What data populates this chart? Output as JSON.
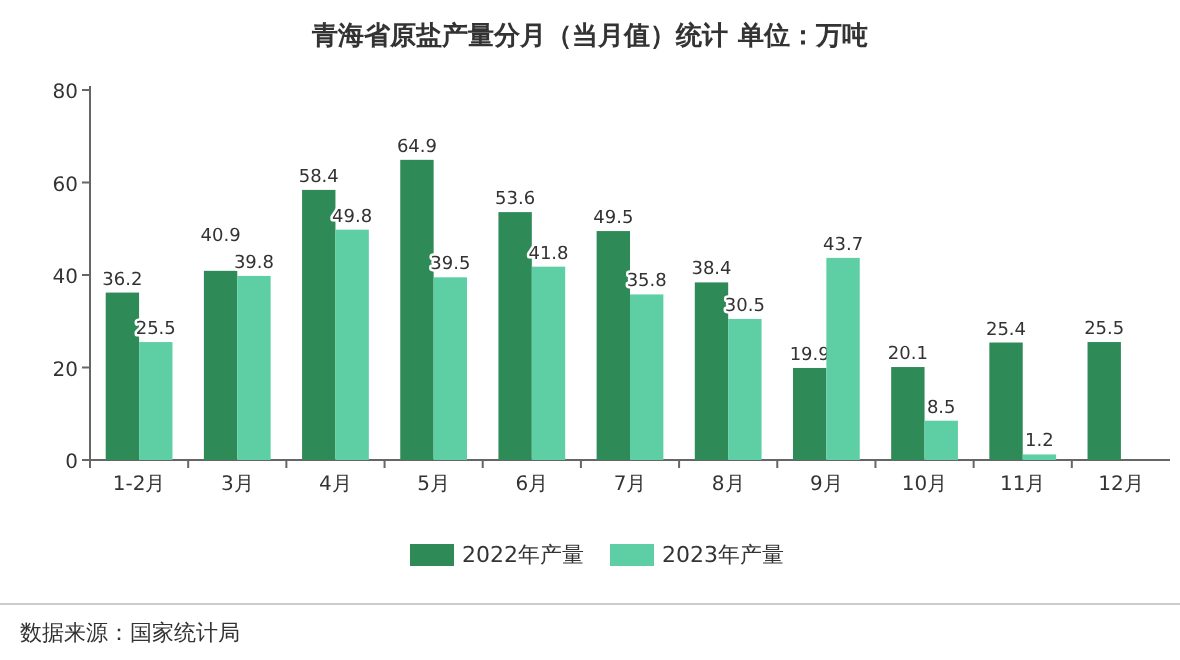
{
  "chart_data": {
    "type": "bar",
    "title": "青海省原盐产量分月（当月值）统计  单位：万吨",
    "categories": [
      "1-2月",
      "3月",
      "4月",
      "5月",
      "6月",
      "7月",
      "8月",
      "9月",
      "10月",
      "11月",
      "12月"
    ],
    "series": [
      {
        "name": "2022年产量",
        "color": "#2e8b57",
        "values": [
          36.2,
          40.9,
          58.4,
          64.9,
          53.6,
          49.5,
          38.4,
          19.9,
          20.1,
          25.4,
          25.5
        ]
      },
      {
        "name": "2023年产量",
        "color": "#5ecfa4",
        "values": [
          25.5,
          39.8,
          49.8,
          39.5,
          41.8,
          35.8,
          30.5,
          43.7,
          8.5,
          1.2,
          null
        ]
      }
    ],
    "ylim": [
      0,
      80
    ],
    "yticks": [
      0,
      20,
      40,
      60,
      80
    ],
    "data_labels": true,
    "legend": "bottom",
    "grid": false,
    "annotations": [
      "数据来源：国家统计局"
    ]
  }
}
